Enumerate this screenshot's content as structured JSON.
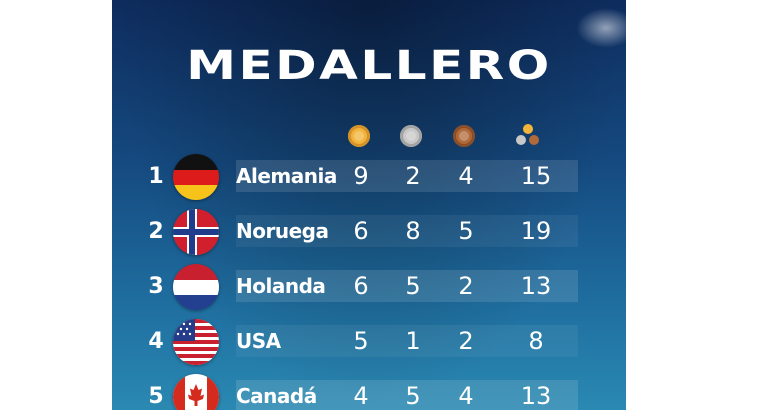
{
  "title": "MEDALLERO",
  "columns": [
    "gold-medal-icon",
    "silver-medal-icon",
    "bronze-medal-icon",
    "total-medals-icon"
  ],
  "colors": {
    "gold": "#f2b43a",
    "silver": "#c8c8c8",
    "bronze": "#b06a3a"
  },
  "rows": [
    {
      "rank": "1",
      "country": "Alemania",
      "flag": "germany-flag-icon",
      "gold": "9",
      "silver": "2",
      "bronze": "4",
      "total": "15"
    },
    {
      "rank": "2",
      "country": "Noruega",
      "flag": "norway-flag-icon",
      "gold": "6",
      "silver": "8",
      "bronze": "5",
      "total": "19"
    },
    {
      "rank": "3",
      "country": "Holanda",
      "flag": "netherlands-flag-icon",
      "gold": "6",
      "silver": "5",
      "bronze": "2",
      "total": "13"
    },
    {
      "rank": "4",
      "country": "USA",
      "flag": "usa-flag-icon",
      "gold": "5",
      "silver": "1",
      "bronze": "2",
      "total": "8"
    },
    {
      "rank": "5",
      "country": "Canadá",
      "flag": "canada-flag-icon",
      "gold": "4",
      "silver": "5",
      "bronze": "4",
      "total": "13"
    }
  ]
}
